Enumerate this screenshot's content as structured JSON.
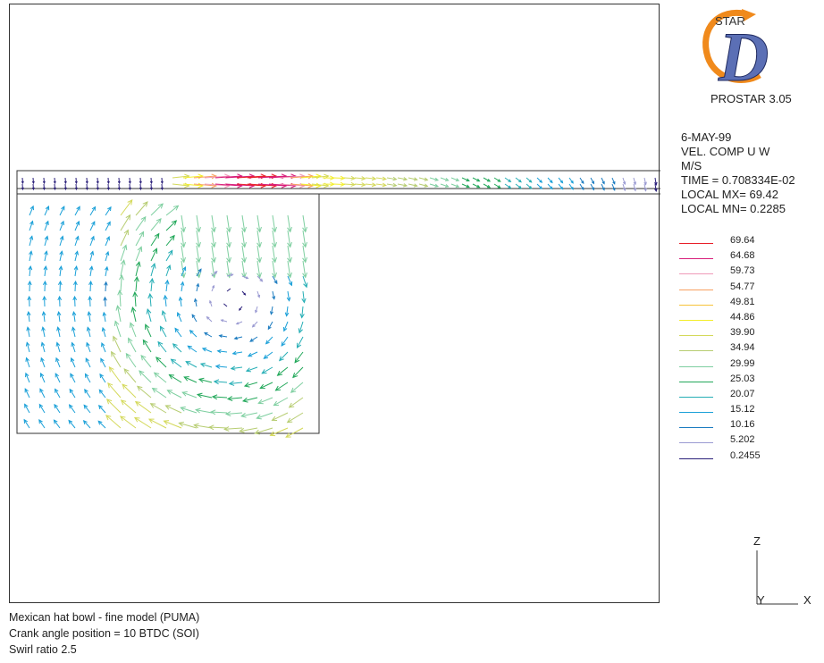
{
  "product": {
    "logo_text": "STAR",
    "logo_letter": "D",
    "name": "PROSTAR 3.05",
    "colors": {
      "orange": "#f08a1c",
      "blue": "#5b6fb5"
    }
  },
  "info": {
    "date": "6-MAY-99",
    "variable": "VEL. COMP  U W",
    "units": "M/S",
    "time": "TIME = 0.708334E-02",
    "local_max": "LOCAL MX=  69.42",
    "local_min": "LOCAL MN= 0.2285"
  },
  "legend": {
    "entries": [
      {
        "value": "69.64",
        "color": "#e8202a"
      },
      {
        "value": "64.68",
        "color": "#d81d7a"
      },
      {
        "value": "59.73",
        "color": "#ef9ab8"
      },
      {
        "value": "54.77",
        "color": "#f7a060"
      },
      {
        "value": "49.81",
        "color": "#f6c23a"
      },
      {
        "value": "44.86",
        "color": "#f3ee2a"
      },
      {
        "value": "39.90",
        "color": "#d4d95a"
      },
      {
        "value": "34.94",
        "color": "#b7cd72"
      },
      {
        "value": "29.99",
        "color": "#7ecfa0"
      },
      {
        "value": "25.03",
        "color": "#22a85a"
      },
      {
        "value": "20.07",
        "color": "#25aeb5"
      },
      {
        "value": "15.12",
        "color": "#1aa0d8"
      },
      {
        "value": "10.16",
        "color": "#1c7cc0"
      },
      {
        "value": "5.202",
        "color": "#9a9ad2"
      },
      {
        "value": "0.2455",
        "color": "#2a1f7a"
      }
    ]
  },
  "axes": {
    "z": "Z",
    "y": "Y",
    "x": "X"
  },
  "footer": {
    "line1": "Mexican hat bowl - fine model (PUMA)",
    "line2": "Crank angle position = 10  BTDC (SOI)",
    "line3": "Swirl ratio 2.5"
  }
}
